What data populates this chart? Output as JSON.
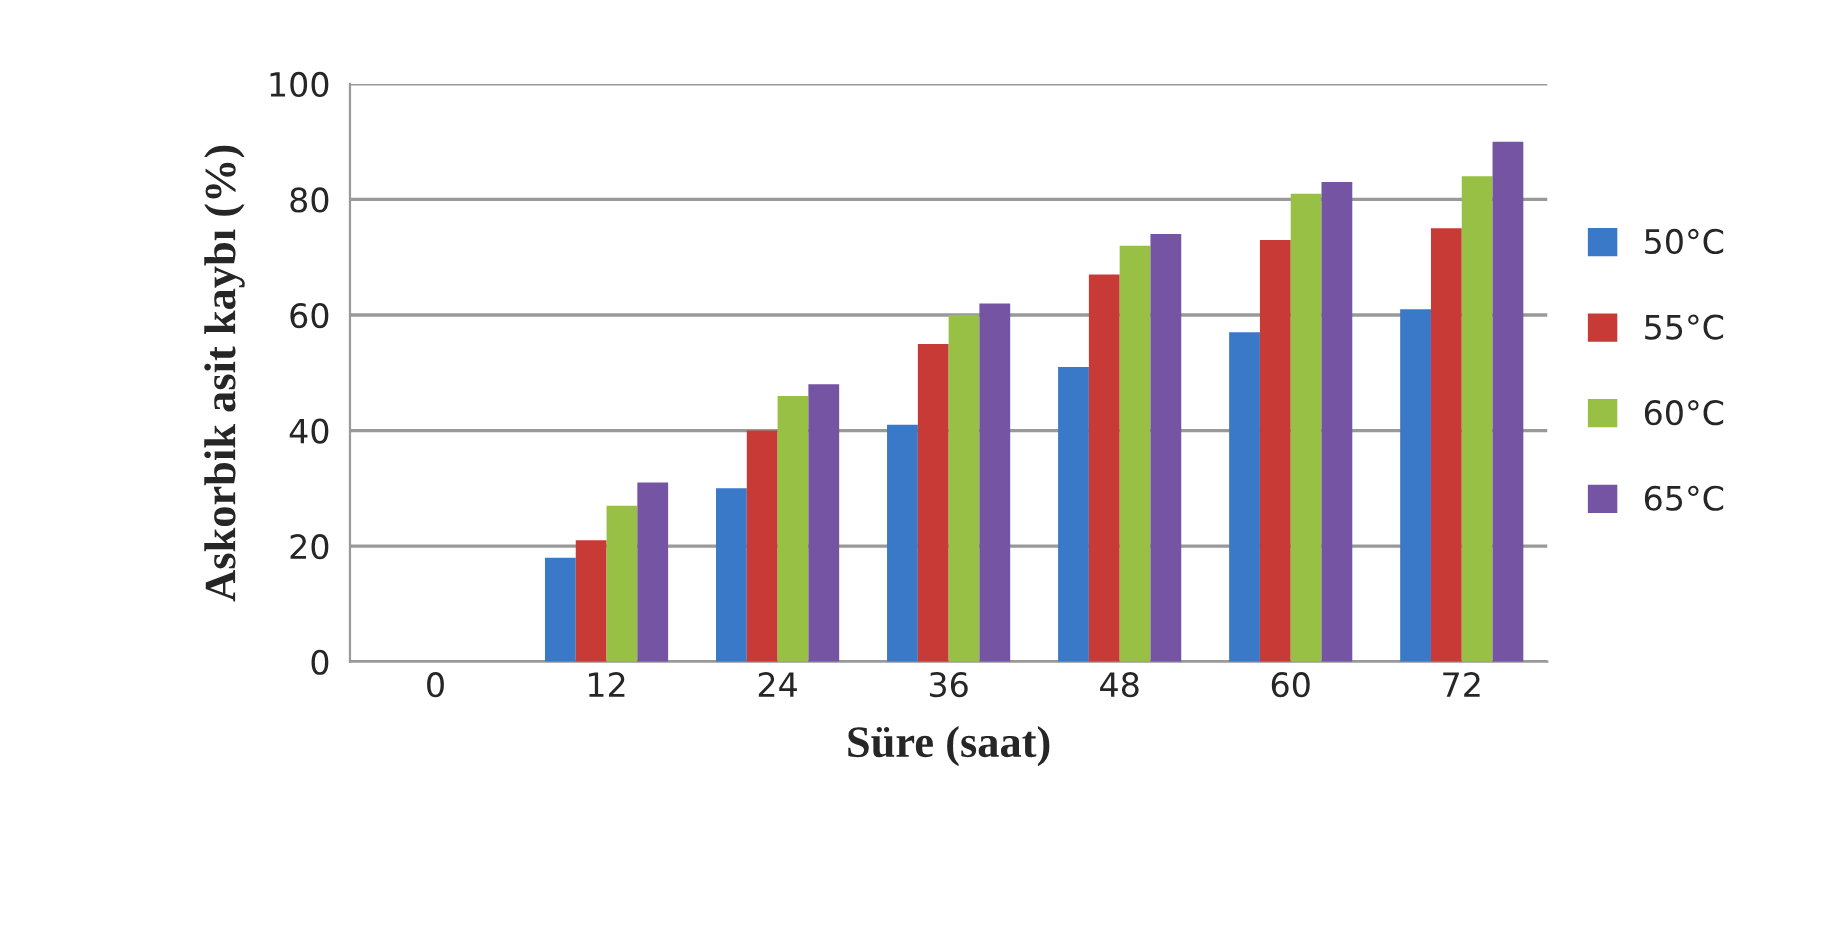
{
  "chart_data": {
    "type": "bar",
    "xlabel": "Süre (saat)",
    "ylabel": "Askorbik asit kaybı (%)",
    "categories": [
      "0",
      "12",
      "24",
      "36",
      "48",
      "60",
      "72"
    ],
    "series": [
      {
        "name": "50°C",
        "color": "#3a78c8",
        "values": [
          0,
          18,
          30,
          41,
          51,
          57,
          61
        ]
      },
      {
        "name": "55°C",
        "color": "#c83a36",
        "values": [
          0,
          21,
          40,
          55,
          67,
          73,
          75
        ]
      },
      {
        "name": "60°C",
        "color": "#98c044",
        "values": [
          0,
          27,
          46,
          60,
          72,
          81,
          84
        ]
      },
      {
        "name": "65°C",
        "color": "#7654a4",
        "values": [
          0,
          31,
          48,
          62,
          74,
          83,
          90
        ]
      }
    ],
    "ylim": [
      0,
      100
    ],
    "yticks": [
      0,
      20,
      40,
      60,
      80,
      100
    ],
    "grid": "y",
    "legend": "right"
  }
}
